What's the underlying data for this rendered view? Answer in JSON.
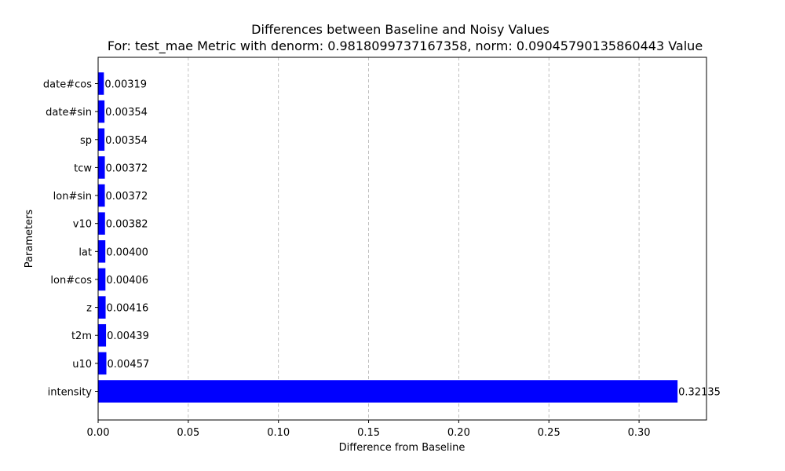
{
  "chart_data": {
    "type": "bar",
    "orientation": "horizontal",
    "title": "Differences between Baseline and Noisy Values",
    "subtitle": "For: test_mae Metric with denorm: 0.9818099737167358, norm: 0.09045790135860443 Value",
    "xlabel": "Difference from Baseline",
    "ylabel": "Parameters",
    "categories": [
      "intensity",
      "u10",
      "t2m",
      "z",
      "lon#cos",
      "lat",
      "v10",
      "lon#sin",
      "tcw",
      "sp",
      "date#sin",
      "date#cos"
    ],
    "values": [
      0.32135,
      0.00457,
      0.00439,
      0.00416,
      0.00406,
      0.004,
      0.00382,
      0.00372,
      0.00372,
      0.00354,
      0.00354,
      0.00319
    ],
    "value_labels": [
      "0.32135",
      "0.00457",
      "0.00439",
      "0.00416",
      "0.00406",
      "0.00400",
      "0.00382",
      "0.00372",
      "0.00372",
      "0.00354",
      "0.00354",
      "0.00319"
    ],
    "xticks": [
      0,
      0.05,
      0.1,
      0.15,
      0.2,
      0.25,
      0.3
    ],
    "xtick_labels": [
      "0.00",
      "0.05",
      "0.10",
      "0.15",
      "0.20",
      "0.25",
      "0.30"
    ],
    "xlim": [
      0,
      0.3374
    ],
    "grid": "x-dashed",
    "bar_color": "#0000ff",
    "grid_color": "#b0b0b0"
  }
}
